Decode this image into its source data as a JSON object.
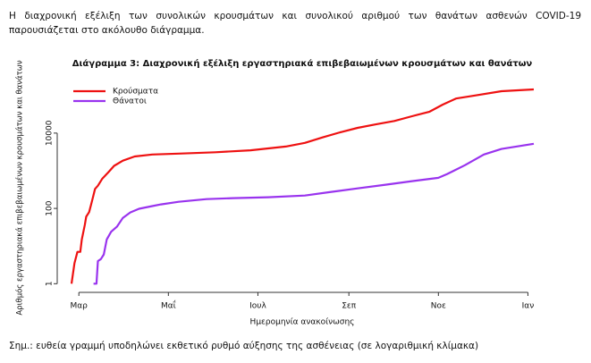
{
  "intro": "Η διαχρονική εξέλιξη των συνολικών κρουσμάτων και συνολικού αριθμού των θανάτων ασθενών COVID-19 παρουσιάζεται στο ακόλουθο διάγραμμα.",
  "note": "Σημ.: ευθεία γραμμή υποδηλώνει εκθετικό ρυθμό αύξησης της ασθένειας (σε λογαριθμική κλίμακα)",
  "chart_data": {
    "type": "line",
    "title": "Διάγραμμα 3: Διαχρονική εξέλιξη εργαστηριακά επιβεβαιωμένων κρουσμάτων και θανάτων",
    "x_label": "Ημερομηνία ανακοίνωσης",
    "y_label": "Αριθμός εργαστηριακά επιβεβαιωμένων κρουσμάτων και θανάτων",
    "ylog": true,
    "legend": "top-left",
    "xlim": [
      -5,
      310
    ],
    "xticks": [
      {
        "value": 0,
        "label": "Μαρ"
      },
      {
        "value": 61,
        "label": "Μαΐ"
      },
      {
        "value": 122,
        "label": "Ιουλ"
      },
      {
        "value": 184,
        "label": "Σεπ"
      },
      {
        "value": 245,
        "label": "Νοε"
      },
      {
        "value": 306,
        "label": "Ιαν"
      }
    ],
    "ylim": [
      0.5,
      250000
    ],
    "yticks": [
      1,
      100,
      10000
    ],
    "series": [
      {
        "name": "Κρούσματα",
        "color": "#ee1111",
        "x": [
          -5,
          -3,
          -1,
          1,
          2,
          4,
          5,
          7,
          9,
          11,
          13,
          16,
          20,
          24,
          30,
          38,
          50,
          68,
          93,
          117,
          141,
          154,
          166,
          178,
          190,
          202,
          215,
          227,
          239,
          248,
          257,
          270,
          288,
          310
        ],
        "values": [
          1,
          3.5,
          7,
          7,
          15,
          36,
          60,
          80,
          160,
          330,
          400,
          620,
          900,
          1350,
          1850,
          2400,
          2700,
          2850,
          3100,
          3500,
          4400,
          5500,
          7700,
          10500,
          13800,
          17000,
          21000,
          28000,
          37000,
          57000,
          83000,
          100000,
          130000,
          145000
        ]
      },
      {
        "name": "Θάνατοι",
        "color": "#9933ee",
        "x": [
          10,
          12,
          13,
          15,
          17,
          19,
          22,
          26,
          30,
          35,
          41,
          50,
          56,
          68,
          87,
          105,
          129,
          154,
          172,
          190,
          209,
          227,
          245,
          251,
          263,
          276,
          288,
          310
        ],
        "values": [
          1,
          1,
          4,
          4.5,
          6,
          15,
          24,
          33,
          56,
          78,
          98,
          115,
          128,
          150,
          177,
          188,
          198,
          220,
          275,
          340,
          425,
          530,
          650,
          820,
          1400,
          2700,
          3800,
          5200
        ]
      }
    ]
  }
}
